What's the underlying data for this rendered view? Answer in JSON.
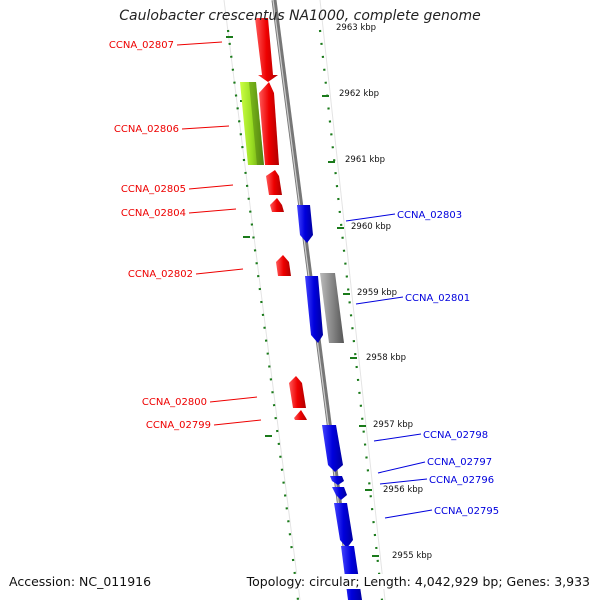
{
  "title": "Caulobacter crescentus NA1000, complete genome",
  "footer": {
    "accession": "Accession: NC_011916",
    "summary": "Topology: circular; Length: 4,042,929 bp; Genes: 3,933"
  },
  "colors": {
    "reverse_strand": "#ee0000",
    "forward_strand": "#0000dd",
    "rna": "#999999",
    "highlight": "#99dd22",
    "backbone": "#888888",
    "ticks": "#1a7a1a"
  },
  "axis": {
    "top_partial_label": "2963 kbp",
    "ticks": [
      {
        "kbp": 2962,
        "label": "2962 kbp"
      },
      {
        "kbp": 2961,
        "label": "2961 kbp"
      },
      {
        "kbp": 2960,
        "label": "2960 kbp"
      },
      {
        "kbp": 2959,
        "label": "2959 kbp"
      },
      {
        "kbp": 2958,
        "label": "2958 kbp"
      },
      {
        "kbp": 2957,
        "label": "2957 kbp"
      },
      {
        "kbp": 2956,
        "label": "2956 kbp"
      },
      {
        "kbp": 2955,
        "label": "2955 kbp"
      }
    ]
  },
  "left_labels": [
    {
      "text": "CCNA_02807"
    },
    {
      "text": "CCNA_02806"
    },
    {
      "text": "CCNA_02805"
    },
    {
      "text": "CCNA_02804"
    },
    {
      "text": "CCNA_02802"
    },
    {
      "text": "CCNA_02800"
    },
    {
      "text": "CCNA_02799"
    }
  ],
  "right_labels": [
    {
      "text": "CCNA_02803"
    },
    {
      "text": "CCNA_02801"
    },
    {
      "text": "CCNA_02798"
    },
    {
      "text": "CCNA_02797"
    },
    {
      "text": "CCNA_02796"
    },
    {
      "text": "CCNA_02795"
    }
  ]
}
